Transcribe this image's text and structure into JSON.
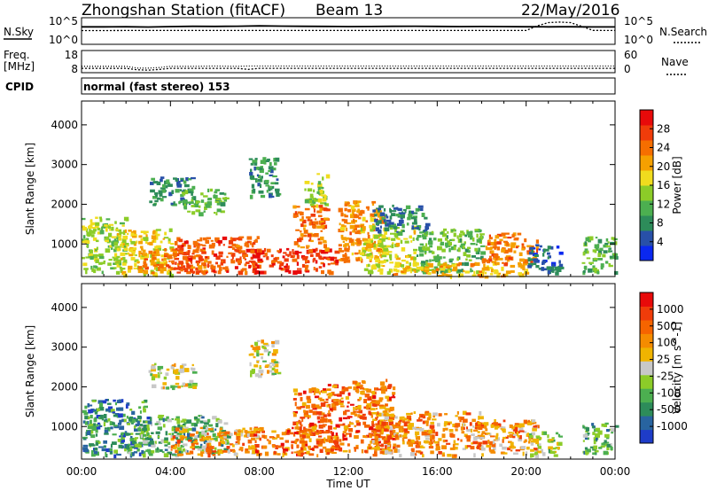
{
  "header": {
    "station": "Zhongshan Station (fitACF)",
    "beam": "Beam 13",
    "date": "22/May/2016"
  },
  "summary_panels": {
    "nsky": {
      "left_label": "N.Sky",
      "left_ticks": [
        "10^5",
        "10^0"
      ],
      "right_label": "N.Search",
      "right_ticks": [
        "10^5",
        "10^0"
      ]
    },
    "freq": {
      "left_label_1": "Freq.",
      "left_label_2": "[MHz]",
      "left_ticks": [
        "18",
        "8"
      ],
      "right_label": "Nave",
      "right_ticks": [
        "60",
        "0"
      ]
    },
    "cpid": {
      "label": "CPID",
      "text": "normal (fast stereo) 153"
    }
  },
  "chart_data": [
    {
      "type": "line",
      "panel": "N.Sky / N.Search",
      "yscale": "log",
      "ylim": [
        1,
        100000
      ],
      "x_hours": [
        0,
        1,
        2,
        3,
        4,
        5,
        6,
        7,
        8,
        9,
        10,
        11,
        12,
        13,
        14,
        15,
        16,
        17,
        18,
        19,
        20,
        20.5,
        21,
        21.5,
        22,
        22.5,
        23,
        24
      ],
      "series": [
        {
          "values": [
            3000,
            3000,
            3200,
            2800,
            3500,
            4000,
            3800,
            4200,
            5000,
            4500,
            4000,
            3800,
            3500,
            3600,
            4000,
            4200,
            3800,
            3500,
            3600,
            3400,
            3200,
            3300,
            3000,
            3100,
            3200,
            3000,
            2900,
            2900
          ]
        },
        {
          "values": [
            400,
            400,
            420,
            420,
            420,
            420,
            420,
            420,
            420,
            420,
            420,
            420,
            420,
            420,
            420,
            420,
            420,
            420,
            420,
            420,
            420,
            5000,
            30000,
            40000,
            30000,
            4000,
            450,
            420
          ]
        }
      ]
    },
    {
      "type": "line",
      "panel": "Freq. / Nave",
      "ylim": [
        8,
        18
      ],
      "x_hours": [
        0,
        1,
        2,
        2.5,
        3,
        3.5,
        4,
        5,
        6,
        7,
        7.5,
        8,
        9,
        10,
        12,
        14,
        16,
        18,
        20,
        22,
        24
      ],
      "series": [
        {
          "values": [
            10.5,
            10.5,
            10.5,
            9.5,
            9.5,
            9.8,
            10.5,
            10.5,
            10.6,
            10.5,
            10.6,
            10.6,
            10.6,
            10.6,
            10.6,
            10.6,
            10.6,
            10.6,
            10.6,
            10.6,
            10.6
          ]
        },
        {
          "values": [
            9.4,
            9.4,
            9.4,
            8.6,
            8.4,
            8.8,
            9.4,
            9.4,
            9.4,
            9.4,
            8.8,
            9.4,
            9.4,
            9.4,
            9.4,
            9.4,
            9.4,
            9.4,
            9.4,
            9.4,
            9.4
          ]
        }
      ]
    },
    {
      "type": "heatmap",
      "title": "Power",
      "ylabel": "Slant Range [km]",
      "xlim": [
        0,
        24
      ],
      "ylim": [
        180,
        4600
      ],
      "y_ticks": [
        1000,
        2000,
        3000,
        4000
      ],
      "colorbar": {
        "label": "Power [dB]",
        "ticks": [
          4,
          8,
          12,
          16,
          20,
          24,
          28
        ],
        "range": [
          0,
          32
        ],
        "colors": [
          "#0a28f0",
          "#2850a8",
          "#2d8c5a",
          "#4caf50",
          "#8ccc28",
          "#f0dc1e",
          "#f5a000",
          "#f56e00",
          "#f03c0a",
          "#e80a0a"
        ]
      },
      "blobs": [
        {
          "x0": 0.0,
          "x1": 2.0,
          "y0": 300,
          "y1": 1700,
          "value": 14
        },
        {
          "x0": 1.5,
          "x1": 4.0,
          "y0": 250,
          "y1": 1400,
          "value": 18
        },
        {
          "x0": 2.5,
          "x1": 5.5,
          "y0": 300,
          "y1": 900,
          "value": 25
        },
        {
          "x0": 4.0,
          "x1": 8.0,
          "y0": 300,
          "y1": 1200,
          "value": 27
        },
        {
          "x0": 7.5,
          "x1": 11.5,
          "y0": 300,
          "y1": 900,
          "value": 29
        },
        {
          "x0": 3.0,
          "x1": 5.0,
          "y0": 2000,
          "y1": 2700,
          "value": 7
        },
        {
          "x0": 4.5,
          "x1": 6.5,
          "y0": 1800,
          "y1": 2400,
          "value": 12
        },
        {
          "x0": 7.5,
          "x1": 8.8,
          "y0": 2200,
          "y1": 3200,
          "value": 8
        },
        {
          "x0": 9.5,
          "x1": 11.0,
          "y0": 900,
          "y1": 2000,
          "value": 25
        },
        {
          "x0": 10.0,
          "x1": 11.0,
          "y0": 2000,
          "y1": 2800,
          "value": 15
        },
        {
          "x0": 11.5,
          "x1": 13.5,
          "y0": 600,
          "y1": 2100,
          "value": 23
        },
        {
          "x0": 12.5,
          "x1": 15.0,
          "y0": 300,
          "y1": 1500,
          "value": 17
        },
        {
          "x0": 13.0,
          "x1": 15.5,
          "y0": 1300,
          "y1": 2000,
          "value": 7
        },
        {
          "x0": 15.0,
          "x1": 18.0,
          "y0": 300,
          "y1": 1400,
          "value": 12
        },
        {
          "x0": 14.0,
          "x1": 20.0,
          "y0": 200,
          "y1": 550,
          "value": 21
        },
        {
          "x0": 18.0,
          "x1": 20.5,
          "y0": 500,
          "y1": 1300,
          "value": 24
        },
        {
          "x0": 20.0,
          "x1": 21.5,
          "y0": 300,
          "y1": 1000,
          "value": 5
        },
        {
          "x0": 22.5,
          "x1": 24.0,
          "y0": 300,
          "y1": 1200,
          "value": 11
        }
      ]
    },
    {
      "type": "heatmap",
      "title": "Velocity",
      "ylabel": "Slant Range [km]",
      "xlabel": "Time UT",
      "xlim": [
        0,
        24
      ],
      "ylim": [
        180,
        4600
      ],
      "x_ticks": [
        "00:00",
        "04:00",
        "08:00",
        "12:00",
        "16:00",
        "20:00",
        "00:00"
      ],
      "y_ticks": [
        1000,
        2000,
        3000,
        4000
      ],
      "colorbar": {
        "label": "Velocity [m s^-1]",
        "ticks": [
          "1000",
          "500",
          "100",
          "25",
          "-25",
          "-100",
          "-500",
          "-1000"
        ],
        "colors": [
          "#1e3cc8",
          "#2864a0",
          "#2d8c5a",
          "#4caf50",
          "#8ccc28",
          "#c8c8c8",
          "#f0b400",
          "#f58c00",
          "#f56400",
          "#f03c0a",
          "#e80a0a"
        ]
      },
      "blobs": [
        {
          "x0": 0.0,
          "x1": 3.0,
          "y0": 300,
          "y1": 1700,
          "value": 2
        },
        {
          "x0": 2.0,
          "x1": 6.5,
          "y0": 300,
          "y1": 1300,
          "value": 3
        },
        {
          "x0": 4.0,
          "x1": 8.0,
          "y0": 300,
          "y1": 1000,
          "value": 7
        },
        {
          "x0": 7.5,
          "x1": 11.5,
          "y0": 300,
          "y1": 1000,
          "value": 8
        },
        {
          "x0": 3.0,
          "x1": 5.0,
          "y0": 2000,
          "y1": 2600,
          "value": 5
        },
        {
          "x0": 7.5,
          "x1": 8.8,
          "y0": 2300,
          "y1": 3200,
          "value": 5
        },
        {
          "x0": 9.5,
          "x1": 11.0,
          "y0": 900,
          "y1": 2000,
          "value": 8
        },
        {
          "x0": 11.0,
          "x1": 14.0,
          "y0": 400,
          "y1": 2200,
          "value": 8
        },
        {
          "x0": 13.0,
          "x1": 18.0,
          "y0": 300,
          "y1": 1400,
          "value": 7
        },
        {
          "x0": 17.5,
          "x1": 20.5,
          "y0": 300,
          "y1": 1200,
          "value": 7
        },
        {
          "x0": 20.0,
          "x1": 21.5,
          "y0": 300,
          "y1": 900,
          "value": 4
        },
        {
          "x0": 22.5,
          "x1": 24.0,
          "y0": 300,
          "y1": 1100,
          "value": 3
        }
      ]
    }
  ]
}
